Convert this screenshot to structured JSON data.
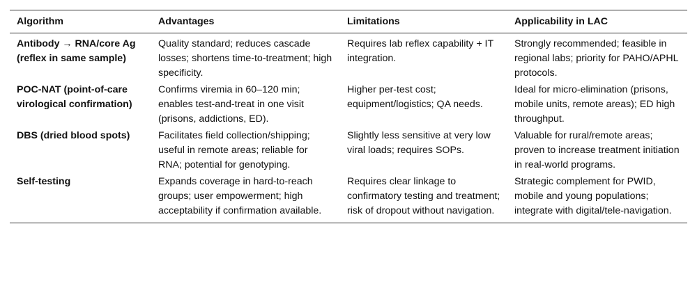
{
  "table": {
    "headers": [
      "Algorithm",
      "Advantages",
      "Limitations",
      "Applicability in LAC"
    ],
    "rows": [
      {
        "algorithm": "Antibody → RNA/core Ag (reflex in same sample)",
        "advantages": "Quality standard; reduces cascade losses; shortens time-to-treatment; high specificity.",
        "limitations": "Requires lab reflex capability + IT integration.",
        "applicability": "Strongly recommended; feasible in regional labs; priority for PAHO/APHL protocols."
      },
      {
        "algorithm": "POC-NAT (point-of-care virological confirmation)",
        "advantages": "Confirms viremia in 60–120 min; enables test-and-treat in one visit (prisons, addictions, ED).",
        "limitations": "Higher per-test cost; equipment/logistics; QA needs.",
        "applicability": "Ideal for micro-elimination (prisons, mobile units, remote areas); ED high throughput."
      },
      {
        "algorithm": "DBS (dried blood spots)",
        "advantages": "Facilitates field collection/shipping; useful in remote areas; reliable for RNA; potential for genotyping.",
        "limitations": "Slightly less sensitive at very low viral loads; requires SOPs.",
        "applicability": "Valuable for rural/remote areas; proven to increase treatment initiation in real-world programs."
      },
      {
        "algorithm": "Self-testing",
        "advantages": "Expands coverage in hard-to-reach groups; user empowerment; high acceptability if confirmation available.",
        "limitations": "Requires clear linkage to confirmatory testing and treatment; risk of dropout without navigation.",
        "applicability": "Strategic complement for PWID, mobile and young populations; integrate with digital/tele-navigation."
      }
    ]
  }
}
